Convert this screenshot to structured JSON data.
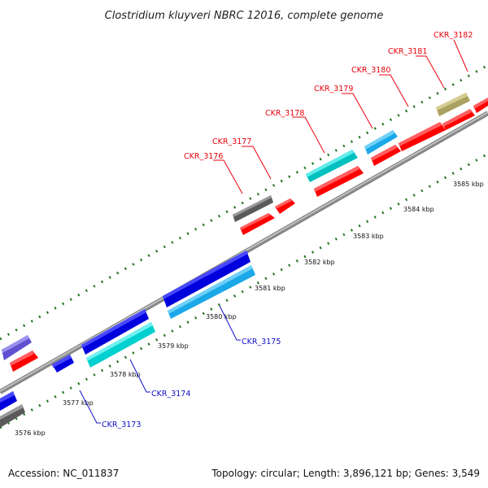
{
  "title": "Clostridium kluyveri NBRC 12016, complete genome",
  "footer": {
    "accession": "Accession: NC_011837",
    "summary": "Topology: circular; Length: 3,896,121 bp; Genes: 3,549"
  },
  "kbp_labels": [
    "3576 kbp",
    "3577 kbp",
    "3578 kbp",
    "3579 kbp",
    "3580 kbp",
    "3581 kbp",
    "3582 kbp",
    "3583 kbp",
    "3584 kbp",
    "3585 kbp"
  ],
  "gene_labels_top": [
    "CKR_3176",
    "CKR_3177",
    "CKR_3178",
    "CKR_3179",
    "CKR_3180",
    "CKR_3181",
    "CKR_3182"
  ],
  "gene_labels_bottom": [
    "CKR_3173",
    "CKR_3174",
    "CKR_3175"
  ],
  "colors": {
    "red": "#ff0000",
    "blue": "#0000dd",
    "cyan": "#00d8d8",
    "lightblue": "#22b4ee",
    "gray": "#666666",
    "olive": "#b8b070",
    "purple": "#7060d8",
    "tick_green": "#227722",
    "label_red": "#e8000b",
    "label_blue": "#1010c8"
  }
}
